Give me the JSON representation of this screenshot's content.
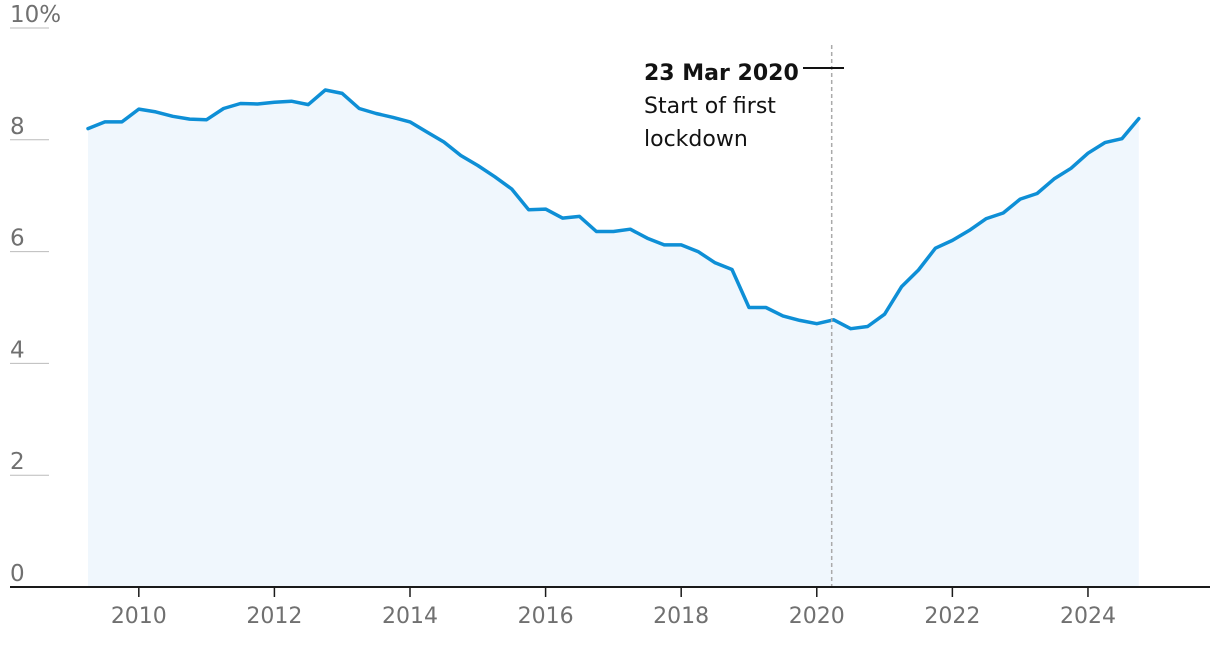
{
  "chart_data": {
    "type": "area",
    "title": "",
    "xlabel": "",
    "ylabel": "",
    "xlim": [
      2008.1,
      2025.8
    ],
    "ylim": [
      0,
      10
    ],
    "y_ticks": [
      {
        "value": 0,
        "label": "0"
      },
      {
        "value": 2,
        "label": "2"
      },
      {
        "value": 4,
        "label": "4"
      },
      {
        "value": 6,
        "label": "6"
      },
      {
        "value": 8,
        "label": "8"
      },
      {
        "value": 10,
        "label": "10%"
      }
    ],
    "x_ticks": [
      {
        "value": 2010,
        "label": "2010"
      },
      {
        "value": 2012,
        "label": "2012"
      },
      {
        "value": 2014,
        "label": "2014"
      },
      {
        "value": 2016,
        "label": "2016"
      },
      {
        "value": 2018,
        "label": "2018"
      },
      {
        "value": 2020,
        "label": "2020"
      },
      {
        "value": 2022,
        "label": "2022"
      },
      {
        "value": 2024,
        "label": "2024"
      }
    ],
    "grid": "horizontal ticks at left only",
    "colors": {
      "line": "#0e8fd6",
      "fill": "#f0f7fd",
      "axis": "#1a1a1a",
      "tick": "#bbbbbb",
      "tick_label": "#707070",
      "annotation_line": "#aaaaaa",
      "annotation_text": "#121212"
    },
    "annotation": {
      "x": 2020.22,
      "title": "23 Mar 2020",
      "line1": "Start of first",
      "line2": "lockdown"
    },
    "series": [
      {
        "x": [
          2009.25,
          2009.5,
          2009.75,
          2010.0,
          2010.25,
          2010.5,
          2010.75,
          2011.0,
          2011.25,
          2011.5,
          2011.75,
          2012.0,
          2012.25,
          2012.5,
          2012.75,
          2013.0,
          2013.25,
          2013.5,
          2013.75,
          2014.0,
          2014.25,
          2014.5,
          2014.75,
          2015.0,
          2015.25,
          2015.5,
          2015.75,
          2016.0,
          2016.25,
          2016.5,
          2016.75,
          2017.0,
          2017.25,
          2017.5,
          2017.75,
          2018.0,
          2018.25,
          2018.5,
          2018.75,
          2019.0,
          2019.25,
          2019.5,
          2019.75,
          2020.0,
          2020.25,
          2020.5,
          2020.75,
          2021.0,
          2021.25,
          2021.5,
          2021.75,
          2022.0,
          2022.25,
          2022.5,
          2022.75,
          2023.0,
          2023.25,
          2023.5,
          2023.75,
          2024.0,
          2024.25,
          2024.5,
          2024.75
        ],
        "y": [
          8.2,
          8.32,
          8.32,
          8.55,
          8.5,
          8.42,
          8.37,
          8.36,
          8.56,
          8.65,
          8.64,
          8.67,
          8.69,
          8.63,
          8.89,
          8.83,
          8.56,
          8.47,
          8.4,
          8.32,
          8.14,
          7.96,
          7.72,
          7.54,
          7.34,
          7.12,
          6.75,
          6.76,
          6.6,
          6.63,
          6.36,
          6.36,
          6.4,
          6.24,
          6.12,
          6.12,
          6.0,
          5.8,
          5.68,
          5.0,
          5.0,
          4.85,
          4.77,
          4.71,
          4.78,
          4.62,
          4.66,
          4.88,
          5.37,
          5.67,
          6.06,
          6.2,
          6.38,
          6.59,
          6.69,
          6.94,
          7.04,
          7.3,
          7.49,
          7.76,
          7.95,
          8.02,
          8.38
        ]
      }
    ]
  }
}
